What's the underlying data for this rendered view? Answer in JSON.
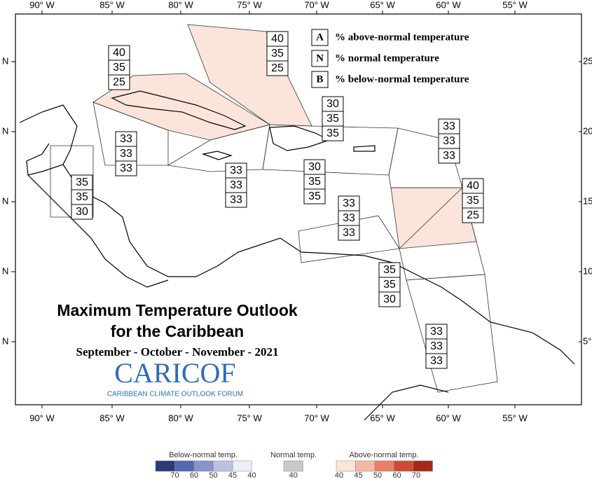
{
  "map": {
    "title": [
      "Maximum Temperature Outlook",
      "for the Caribbean"
    ],
    "period": "September - October - November - 2021",
    "logo": {
      "name": "CariCOF",
      "tagline": "CARIBBEAN CLIMATE OUTLOOK FORUM"
    },
    "key": [
      {
        "letter": "A",
        "text": "% above-normal temperature"
      },
      {
        "letter": "N",
        "text": "% normal temperature"
      },
      {
        "letter": "B",
        "text": "% below-normal temperature"
      }
    ],
    "lon_labels": [
      "90° W",
      "85° W",
      "80° W",
      "75° W",
      "70° W",
      "65° W",
      "60° W",
      "55° W"
    ],
    "lat_labels_left": [
      "N",
      "N",
      "N",
      "N",
      "N"
    ],
    "lat_labels_right": [
      "25",
      "20°",
      "15°",
      "10°",
      "5°"
    ],
    "regions": [
      [
        40,
        35,
        25
      ],
      [
        40,
        35,
        25
      ],
      [
        30,
        35,
        35
      ],
      [
        33,
        33,
        33
      ],
      [
        33,
        33,
        33
      ],
      [
        33,
        33,
        33
      ],
      [
        30,
        35,
        35
      ],
      [
        35,
        35,
        30
      ],
      [
        40,
        35,
        25
      ],
      [
        33,
        33,
        33
      ],
      [
        35,
        35,
        30
      ],
      [
        33,
        33,
        33
      ]
    ],
    "colorbar": {
      "below": {
        "label": "Below-normal temp.",
        "ticks": [
          70,
          60,
          50,
          45,
          40
        ]
      },
      "normal": {
        "label": "Normal temp.",
        "ticks": [
          40
        ]
      },
      "above": {
        "label": "Above-normal temp.",
        "ticks": [
          40,
          45,
          50,
          60,
          70
        ]
      }
    }
  }
}
